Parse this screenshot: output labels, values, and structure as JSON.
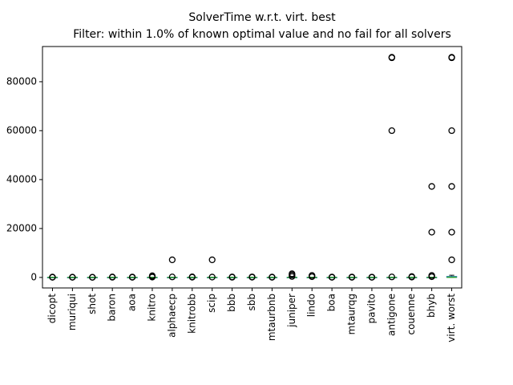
{
  "chart_data": {
    "type": "box",
    "title": "SolverTime w.r.t. virt. best",
    "subtitle": "Filter: within 1.0% of known optimal value and no fail for all solvers",
    "categories": [
      "dicopt",
      "muriqui",
      "shot",
      "baron",
      "aoa",
      "knitro",
      "alphaecp",
      "knitrobb",
      "scip",
      "bbb",
      "sbb",
      "mtaurbnb",
      "juniper",
      "lindo",
      "boa",
      "mtaurqg",
      "pavito",
      "antigone",
      "couenne",
      "bhyb",
      "virt. worst"
    ],
    "boxes": [
      {
        "whislo": 0,
        "q1": 1,
        "med": 3,
        "q3": 10,
        "whishi": 25,
        "fliers": [
          60,
          150
        ]
      },
      {
        "whislo": 0,
        "q1": 1,
        "med": 2,
        "q3": 8,
        "whishi": 20,
        "fliers": [
          50,
          120
        ]
      },
      {
        "whislo": 0,
        "q1": 1,
        "med": 2,
        "q3": 6,
        "whishi": 15,
        "fliers": [
          40,
          90
        ]
      },
      {
        "whislo": 0,
        "q1": 1,
        "med": 3,
        "q3": 9,
        "whishi": 22,
        "fliers": [
          80,
          200
        ]
      },
      {
        "whislo": 0,
        "q1": 1,
        "med": 2,
        "q3": 7,
        "whishi": 18,
        "fliers": [
          60,
          180
        ]
      },
      {
        "whislo": 0,
        "q1": 1,
        "med": 4,
        "q3": 12,
        "whishi": 30,
        "fliers": [
          150,
          400,
          700
        ]
      },
      {
        "whislo": 0,
        "q1": 1,
        "med": 3,
        "q3": 10,
        "whishi": 25,
        "fliers": [
          200,
          7200
        ]
      },
      {
        "whislo": 0,
        "q1": 1,
        "med": 3,
        "q3": 9,
        "whishi": 22,
        "fliers": [
          100,
          250
        ]
      },
      {
        "whislo": 0,
        "q1": 1,
        "med": 3,
        "q3": 10,
        "whishi": 25,
        "fliers": [
          150,
          7200
        ]
      },
      {
        "whislo": 0,
        "q1": 1,
        "med": 2,
        "q3": 8,
        "whishi": 20,
        "fliers": [
          80,
          200
        ]
      },
      {
        "whislo": 0,
        "q1": 1,
        "med": 2,
        "q3": 7,
        "whishi": 18,
        "fliers": [
          90,
          220
        ]
      },
      {
        "whislo": 0,
        "q1": 1,
        "med": 2,
        "q3": 6,
        "whishi": 15,
        "fliers": [
          70,
          160
        ]
      },
      {
        "whislo": 0,
        "q1": 2,
        "med": 6,
        "q3": 20,
        "whishi": 50,
        "fliers": [
          400,
          1000,
          1500
        ]
      },
      {
        "whislo": 0,
        "q1": 1,
        "med": 4,
        "q3": 15,
        "whishi": 35,
        "fliers": [
          300,
          800
        ]
      },
      {
        "whislo": 0,
        "q1": 1,
        "med": 2,
        "q3": 6,
        "whishi": 15,
        "fliers": [
          60,
          150
        ]
      },
      {
        "whislo": 0,
        "q1": 1,
        "med": 2,
        "q3": 7,
        "whishi": 18,
        "fliers": [
          70,
          170
        ]
      },
      {
        "whislo": 0,
        "q1": 1,
        "med": 2,
        "q3": 6,
        "whishi": 15,
        "fliers": [
          50,
          130
        ]
      },
      {
        "whislo": 0,
        "q1": 1,
        "med": 3,
        "q3": 12,
        "whishi": 30,
        "fliers": [
          200,
          60000,
          89800,
          90000
        ]
      },
      {
        "whislo": 0,
        "q1": 1,
        "med": 3,
        "q3": 10,
        "whishi": 25,
        "fliers": [
          150,
          350
        ]
      },
      {
        "whislo": 0,
        "q1": 2,
        "med": 5,
        "q3": 20,
        "whishi": 45,
        "fliers": [
          300,
          800,
          18500,
          37200
        ]
      },
      {
        "whislo": 0,
        "q1": 20,
        "med": 80,
        "q3": 400,
        "whishi": 900,
        "fliers": [
          7200,
          18500,
          37200,
          60000,
          89800,
          90000
        ]
      }
    ],
    "box_color": "#1f77b4",
    "median_color": "#2ca02c",
    "whisker_color": "#1f77b4",
    "cap_color": "#000000",
    "flier_color": "#000000",
    "ylim": [
      -4300,
      94400
    ],
    "yticks": [
      0,
      20000,
      40000,
      60000,
      80000
    ],
    "grid": false
  }
}
